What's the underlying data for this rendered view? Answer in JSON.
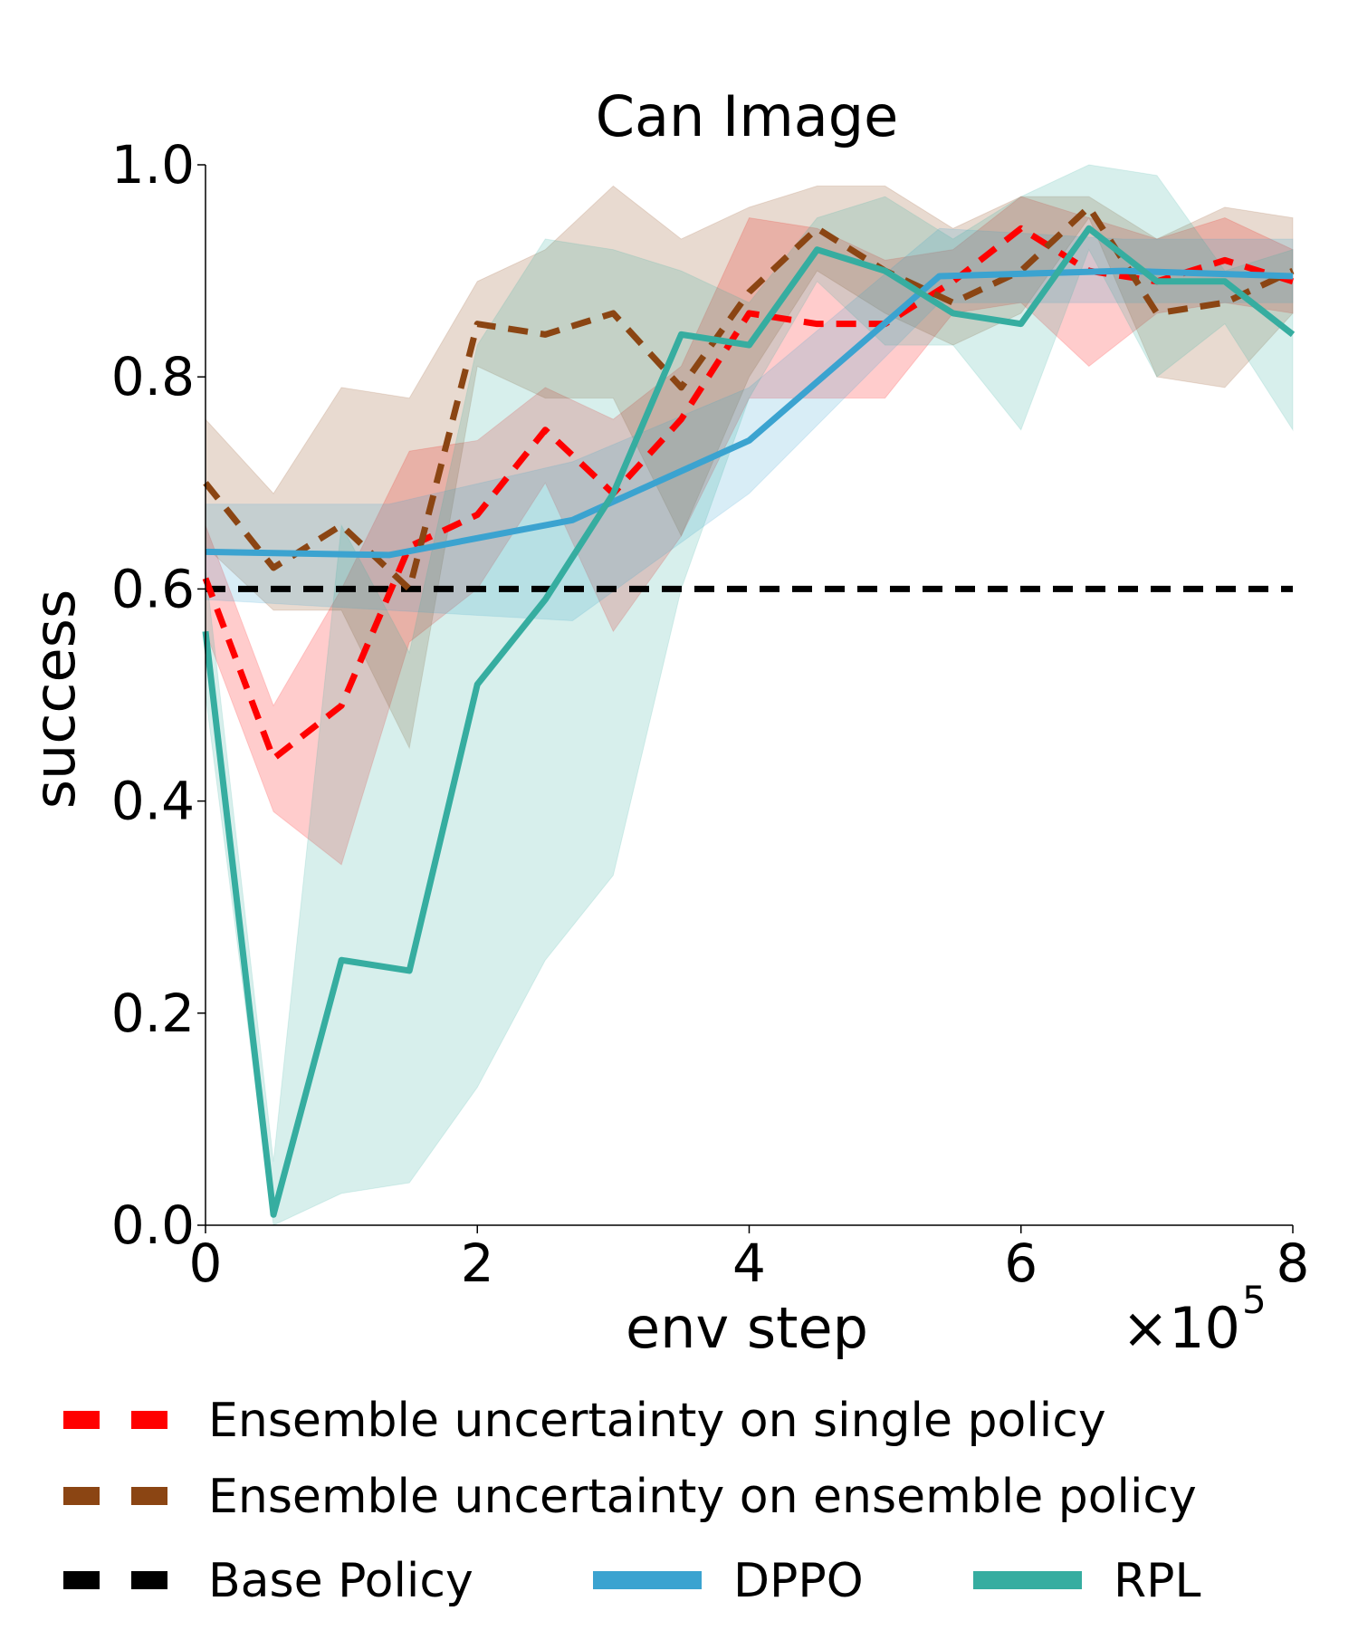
{
  "chart_data": {
    "type": "line",
    "title": "Can Image",
    "xlabel": "env step",
    "ylabel": "success",
    "x_multiplier_label": "×10",
    "x_multiplier_exponent": "5",
    "xlim": [
      0,
      8
    ],
    "ylim": [
      0,
      1
    ],
    "xticks": [
      0,
      2,
      4,
      6,
      8
    ],
    "xtick_labels": [
      "0",
      "2",
      "4",
      "6",
      "8"
    ],
    "yticks": [
      0,
      0.2,
      0.4,
      0.6,
      0.8,
      1.0
    ],
    "ytick_labels": [
      "0.0",
      "0.2",
      "0.4",
      "0.6",
      "0.8",
      "1.0"
    ],
    "grid": false,
    "legend_position": "bottom",
    "series": [
      {
        "name": "Ensemble uncertainty on single policy",
        "color": "#ff0000",
        "style": "dashed",
        "x": [
          0,
          0.5,
          1,
          1.5,
          2,
          2.5,
          3,
          3.5,
          4,
          4.5,
          5,
          5.5,
          6,
          6.5,
          7,
          7.5,
          8
        ],
        "values": [
          0.61,
          0.44,
          0.49,
          0.64,
          0.67,
          0.75,
          0.69,
          0.76,
          0.86,
          0.85,
          0.85,
          0.89,
          0.94,
          0.9,
          0.89,
          0.91,
          0.89
        ],
        "upper": [
          0.66,
          0.49,
          0.6,
          0.73,
          0.74,
          0.79,
          0.76,
          0.81,
          0.95,
          0.94,
          0.91,
          0.92,
          0.97,
          0.95,
          0.93,
          0.95,
          0.92
        ],
        "lower": [
          0.56,
          0.39,
          0.34,
          0.55,
          0.6,
          0.7,
          0.56,
          0.65,
          0.78,
          0.78,
          0.78,
          0.86,
          0.87,
          0.81,
          0.86,
          0.87,
          0.86
        ]
      },
      {
        "name": "Ensemble uncertainty on ensemble policy",
        "color": "#8b4513",
        "style": "dashed",
        "x": [
          0,
          0.5,
          1,
          1.5,
          2,
          2.5,
          3,
          3.5,
          4,
          4.5,
          5,
          5.5,
          6,
          6.5,
          7,
          7.5,
          8
        ],
        "values": [
          0.7,
          0.62,
          0.66,
          0.6,
          0.85,
          0.84,
          0.86,
          0.79,
          0.88,
          0.94,
          0.9,
          0.87,
          0.9,
          0.96,
          0.86,
          0.87,
          0.9
        ],
        "upper": [
          0.76,
          0.69,
          0.79,
          0.78,
          0.89,
          0.92,
          0.98,
          0.93,
          0.96,
          0.98,
          0.98,
          0.94,
          0.97,
          0.97,
          0.93,
          0.96,
          0.95
        ],
        "lower": [
          0.64,
          0.58,
          0.58,
          0.45,
          0.81,
          0.78,
          0.78,
          0.65,
          0.8,
          0.9,
          0.86,
          0.83,
          0.86,
          0.95,
          0.8,
          0.79,
          0.86
        ]
      },
      {
        "name": "Base Policy",
        "color": "#000000",
        "style": "dashed",
        "x": [
          0,
          8
        ],
        "values": [
          0.6,
          0.6
        ]
      },
      {
        "name": "DPPO",
        "color": "#3ba3d0",
        "style": "solid",
        "x": [
          0,
          1.35,
          2.7,
          4.0,
          5.4,
          6.75,
          8
        ],
        "values": [
          0.635,
          0.632,
          0.665,
          0.74,
          0.895,
          0.9,
          0.895
        ],
        "upper": [
          0.68,
          0.68,
          0.72,
          0.79,
          0.94,
          0.93,
          0.93
        ],
        "lower": [
          0.59,
          0.58,
          0.57,
          0.69,
          0.87,
          0.87,
          0.87
        ]
      },
      {
        "name": "RPL",
        "color": "#36ada0",
        "style": "solid",
        "x": [
          0,
          0.5,
          1,
          1.5,
          2,
          2.5,
          3,
          3.5,
          4,
          4.5,
          5,
          5.5,
          6,
          6.5,
          7,
          7.5,
          8
        ],
        "values": [
          0.56,
          0.01,
          0.25,
          0.24,
          0.51,
          0.59,
          0.69,
          0.84,
          0.83,
          0.92,
          0.9,
          0.86,
          0.85,
          0.94,
          0.89,
          0.89,
          0.84
        ],
        "upper": [
          0.62,
          0.06,
          0.66,
          0.54,
          0.83,
          0.93,
          0.92,
          0.9,
          0.87,
          0.95,
          0.97,
          0.93,
          0.97,
          1.0,
          0.99,
          0.9,
          0.92
        ],
        "lower": [
          0.5,
          0.0,
          0.03,
          0.04,
          0.13,
          0.25,
          0.33,
          0.6,
          0.78,
          0.89,
          0.83,
          0.83,
          0.75,
          0.92,
          0.8,
          0.85,
          0.75
        ]
      }
    ]
  }
}
